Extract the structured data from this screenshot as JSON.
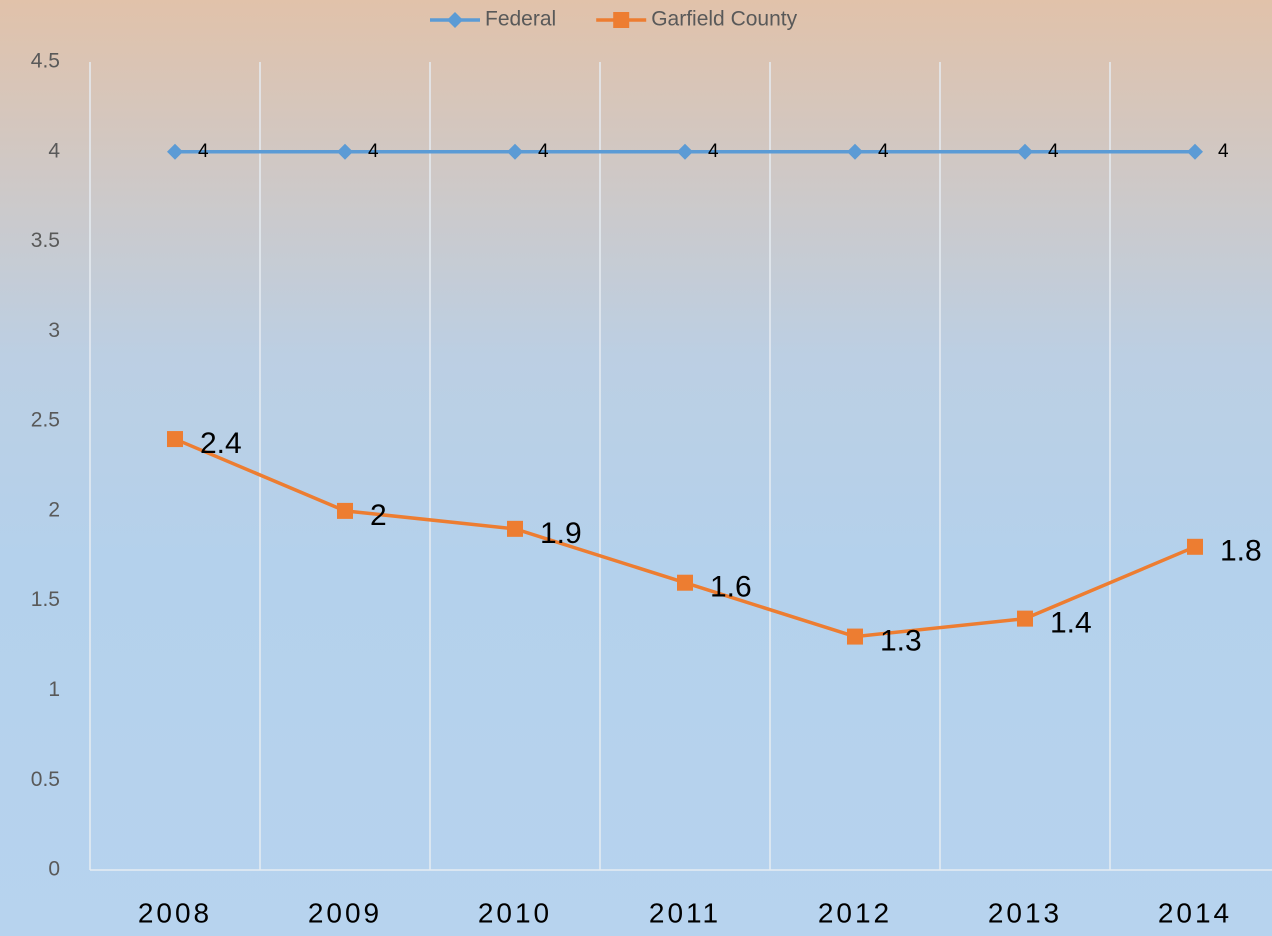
{
  "chart_data": {
    "type": "line",
    "categories": [
      "2008",
      "2009",
      "2010",
      "2011",
      "2012",
      "2013",
      "2014"
    ],
    "series": [
      {
        "name": "Federal",
        "color": "#5b9bd5",
        "marker": "diamond",
        "values": [
          4,
          4,
          4,
          4,
          4,
          4,
          4
        ]
      },
      {
        "name": "Garfield County",
        "color": "#ed7d31",
        "marker": "square",
        "values": [
          2.4,
          2,
          1.9,
          1.6,
          1.3,
          1.4,
          1.8
        ]
      }
    ],
    "ylim": [
      0,
      4.5
    ],
    "yticks": [
      0,
      0.5,
      1,
      1.5,
      2,
      2.5,
      3,
      3.5,
      4,
      4.5
    ],
    "legend": "top"
  }
}
